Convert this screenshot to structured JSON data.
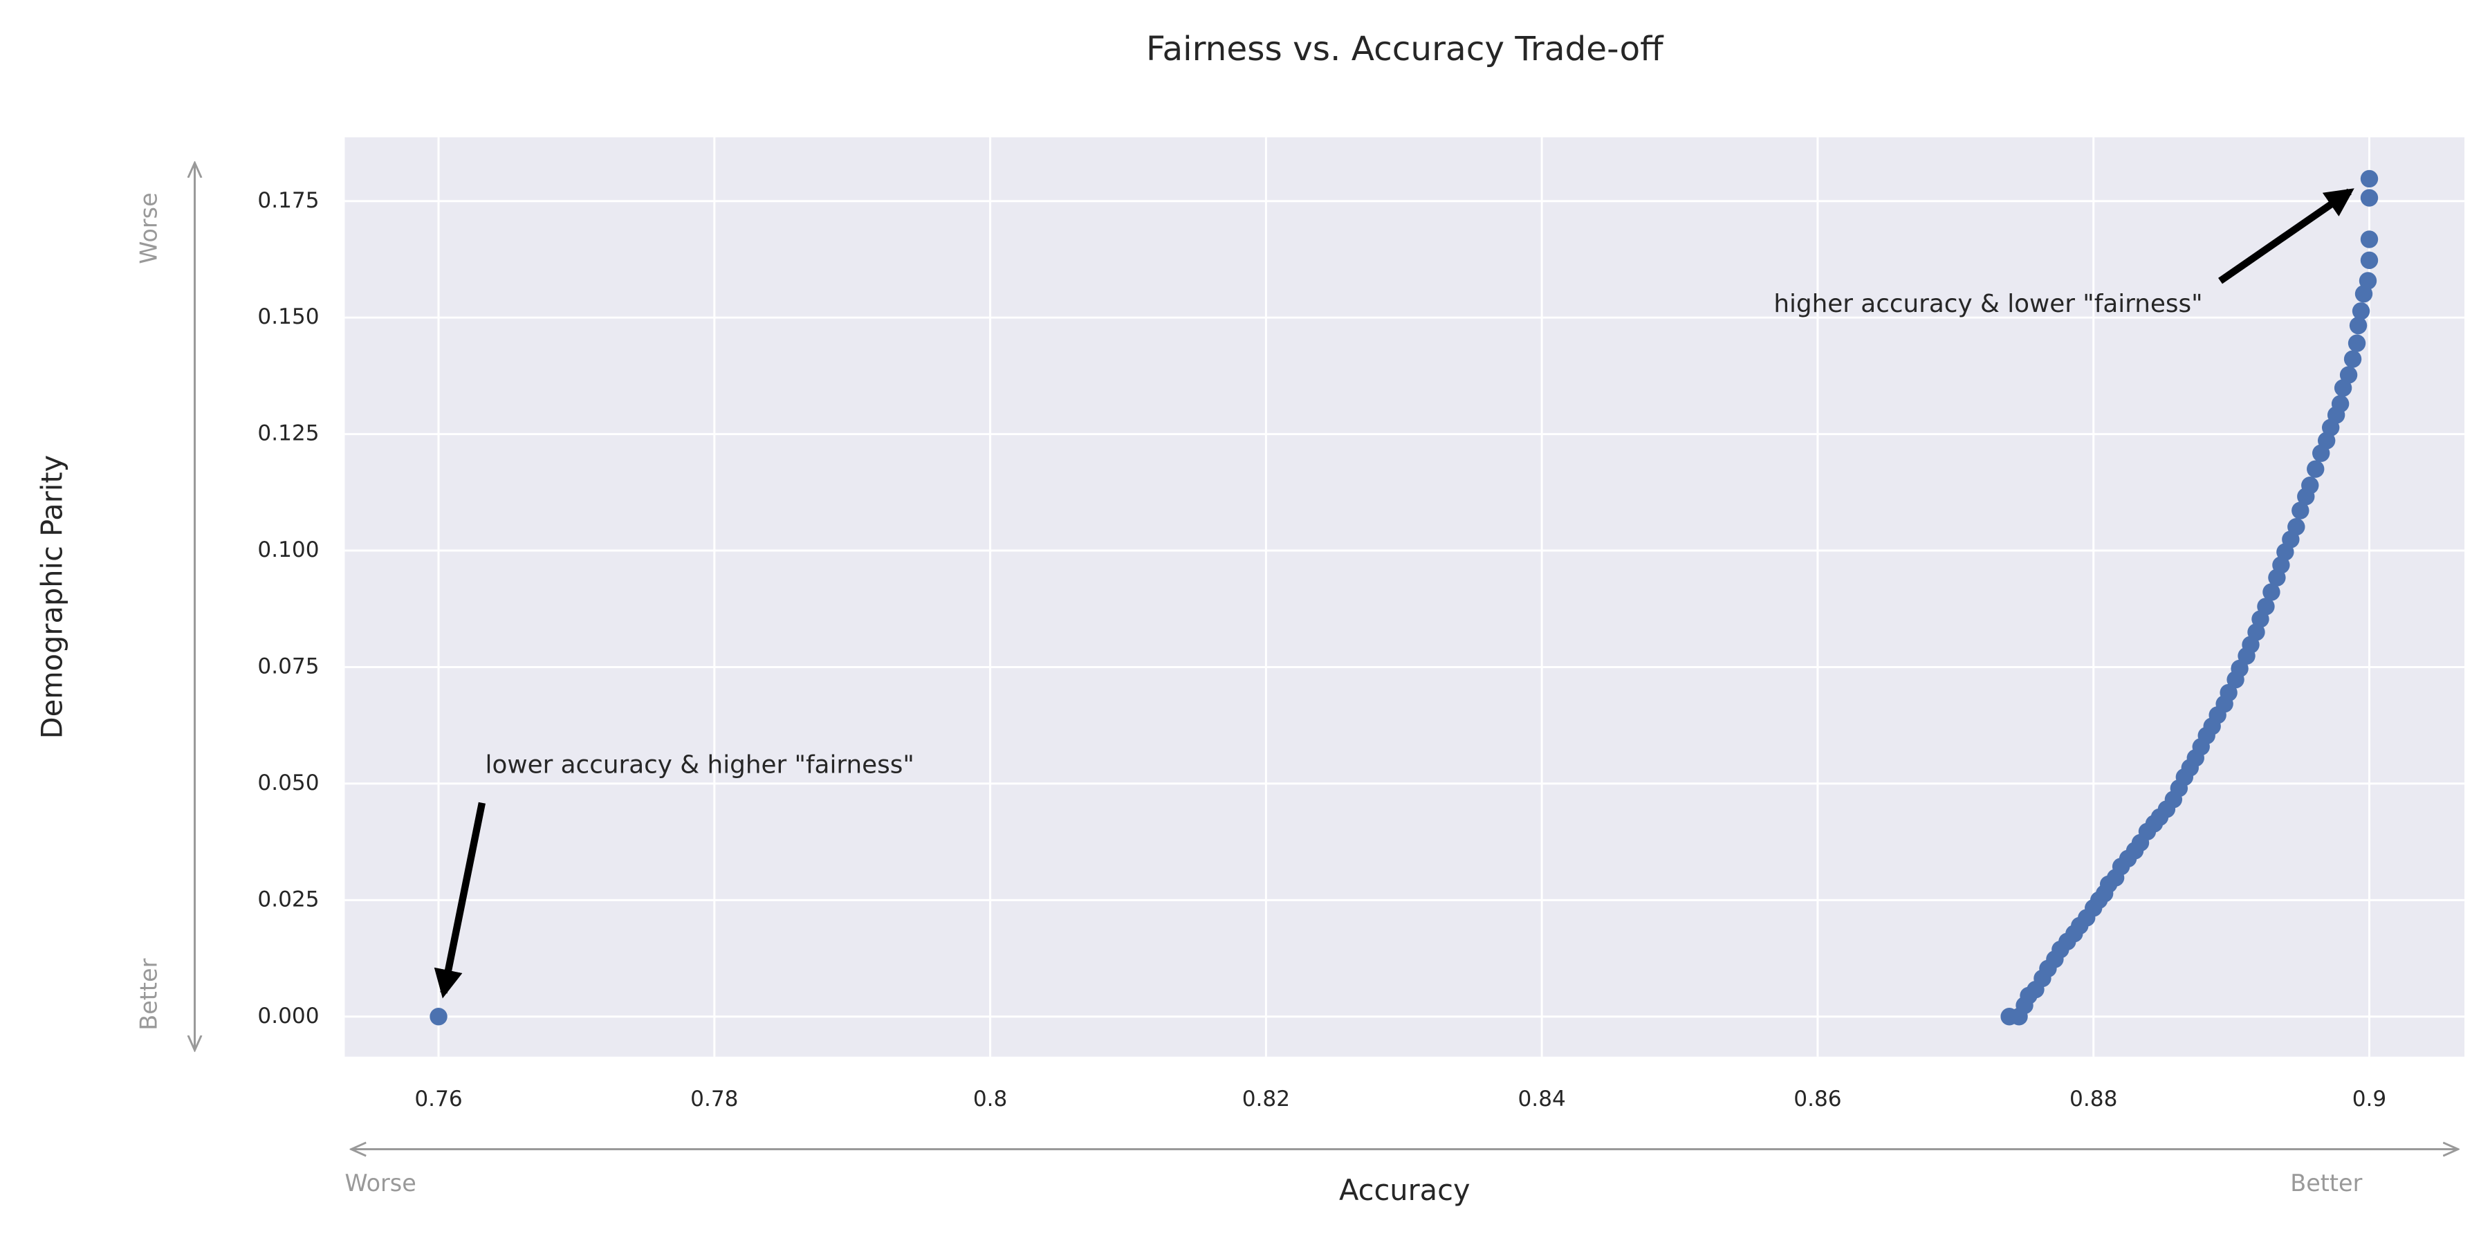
{
  "chart_data": {
    "type": "scatter",
    "title": "Fairness vs. Accuracy Trade-off",
    "x_label": "Accuracy",
    "y_label": "Demographic Parity",
    "x_direction_labels": [
      "Worse",
      "Better"
    ],
    "y_direction_labels": [
      "Better",
      "Worse"
    ],
    "annotations": [
      {
        "text": "lower accuracy & higher \"fairness\""
      },
      {
        "text": "higher accuracy & lower \"fairness\""
      }
    ],
    "xlim": [
      0.7532,
      0.9069
    ],
    "ylim": [
      -0.0086,
      0.1887
    ],
    "xticks": [
      0.76,
      0.78,
      0.8,
      0.82,
      0.84,
      0.86,
      0.88,
      0.9
    ],
    "yticks": [
      {
        "value": 0,
        "label": "0.000"
      },
      0.025,
      {
        "value": 0.05,
        "label": "0.050"
      },
      0.075,
      {
        "value": 0.1,
        "label": "0.100"
      },
      0.125,
      {
        "value": 0.15,
        "label": "0.150"
      },
      0.175
    ],
    "grid": true,
    "color": "#4c72b0",
    "x": [
      0.76,
      0.8739,
      0.8746,
      0.875,
      0.8753,
      0.8758,
      0.8763,
      0.8767,
      0.8772,
      0.8776,
      0.8781,
      0.8786,
      0.879,
      0.8795,
      0.88,
      0.8804,
      0.8808,
      0.8811,
      0.8816,
      0.882,
      0.8825,
      0.883,
      0.8834,
      0.8839,
      0.8844,
      0.8848,
      0.8853,
      0.8858,
      0.8862,
      0.8866,
      0.887,
      0.8874,
      0.8878,
      0.8882,
      0.8886,
      0.889,
      0.8895,
      0.8898,
      0.8903,
      0.8906,
      0.8911,
      0.8914,
      0.8918,
      0.8921,
      0.8925,
      0.8929,
      0.8933,
      0.8936,
      0.8939,
      0.8943,
      0.8947,
      0.895,
      0.8954,
      0.8957,
      0.8961,
      0.8965,
      0.8969,
      0.8972,
      0.8976,
      0.8979,
      0.8981,
      0.8985,
      0.8988,
      0.8991,
      0.8992,
      0.8994,
      0.8996,
      0.8999,
      0.9,
      0.9,
      0.9,
      0.9
    ],
    "values": [
      0,
      0,
      0,
      0.0024,
      0.0045,
      0.0058,
      0.0082,
      0.0103,
      0.0123,
      0.0144,
      0.0161,
      0.0178,
      0.0195,
      0.0212,
      0.0233,
      0.025,
      0.0264,
      0.0284,
      0.0298,
      0.0322,
      0.0339,
      0.0356,
      0.0373,
      0.0397,
      0.0414,
      0.0428,
      0.0445,
      0.0466,
      0.049,
      0.0514,
      0.0534,
      0.0555,
      0.0579,
      0.0603,
      0.0623,
      0.0647,
      0.0671,
      0.0695,
      0.0723,
      0.0747,
      0.0774,
      0.0798,
      0.0825,
      0.0853,
      0.088,
      0.0911,
      0.0942,
      0.0969,
      0.0997,
      0.1024,
      0.1051,
      0.1086,
      0.1116,
      0.114,
      0.1175,
      0.1209,
      0.1236,
      0.1264,
      0.1291,
      0.1315,
      0.1349,
      0.1377,
      0.1411,
      0.1445,
      0.1483,
      0.1514,
      0.1551,
      0.1579,
      0.1623,
      0.1668,
      0.1757,
      0.1798
    ]
  }
}
